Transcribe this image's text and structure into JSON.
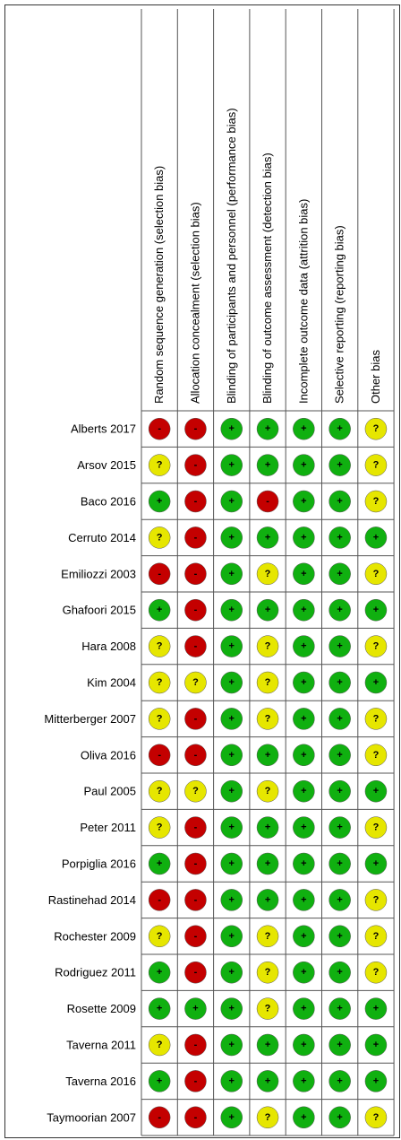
{
  "columns": [
    "Random sequence generation (selection bias)",
    "Allocation concealment (selection bias)",
    "Blinding of participants and personnel (performance bias)",
    "Blinding of outcome assessment (detection bias)",
    "Incomplete outcome data (attrition bias)",
    "Selective reporting (reporting bias)",
    "Other bias"
  ],
  "rows": [
    {
      "study": "Alberts 2017",
      "judgments": [
        "-",
        "-",
        "+",
        "+",
        "+",
        "+",
        "?"
      ]
    },
    {
      "study": "Arsov  2015",
      "judgments": [
        "?",
        "-",
        "+",
        "+",
        "+",
        "+",
        "?"
      ]
    },
    {
      "study": "Baco 2016",
      "judgments": [
        "+",
        "-",
        "+",
        "-",
        "+",
        "+",
        "?"
      ]
    },
    {
      "study": "Cerruto 2014",
      "judgments": [
        "?",
        "-",
        "+",
        "+",
        "+",
        "+",
        "+"
      ]
    },
    {
      "study": "Emiliozzi 2003",
      "judgments": [
        "-",
        "-",
        "+",
        "?",
        "+",
        "+",
        "?"
      ]
    },
    {
      "study": "Ghafoori 2015",
      "judgments": [
        "+",
        "-",
        "+",
        "+",
        "+",
        "+",
        "+"
      ]
    },
    {
      "study": "Hara 2008",
      "judgments": [
        "?",
        "-",
        "+",
        "?",
        "+",
        "+",
        "?"
      ]
    },
    {
      "study": "Kim 2004",
      "judgments": [
        "?",
        "?",
        "+",
        "?",
        "+",
        "+",
        "+"
      ]
    },
    {
      "study": "Mitterberger 2007",
      "judgments": [
        "?",
        "-",
        "+",
        "?",
        "+",
        "+",
        "?"
      ]
    },
    {
      "study": "Oliva 2016",
      "judgments": [
        "-",
        "-",
        "+",
        "+",
        "+",
        "+",
        "?"
      ]
    },
    {
      "study": "Paul 2005",
      "judgments": [
        "?",
        "?",
        "+",
        "?",
        "+",
        "+",
        "+"
      ]
    },
    {
      "study": "Peter 2011",
      "judgments": [
        "?",
        "-",
        "+",
        "+",
        "+",
        "+",
        "?"
      ]
    },
    {
      "study": "Porpiglia 2016",
      "judgments": [
        "+",
        "-",
        "+",
        "+",
        "+",
        "+",
        "+"
      ]
    },
    {
      "study": "Rastinehad 2014",
      "judgments": [
        "-",
        "-",
        "+",
        "+",
        "+",
        "+",
        "?"
      ]
    },
    {
      "study": "Rochester 2009",
      "judgments": [
        "?",
        "-",
        "+",
        "?",
        "+",
        "+",
        "?"
      ]
    },
    {
      "study": "Rodriguez 2011",
      "judgments": [
        "+",
        "-",
        "+",
        "?",
        "+",
        "+",
        "?"
      ]
    },
    {
      "study": "Rosette 2009",
      "judgments": [
        "+",
        "+",
        "+",
        "?",
        "+",
        "+",
        "+"
      ]
    },
    {
      "study": "Taverna 2011",
      "judgments": [
        "?",
        "-",
        "+",
        "+",
        "+",
        "+",
        "+"
      ]
    },
    {
      "study": "Taverna 2016",
      "judgments": [
        "+",
        "-",
        "+",
        "+",
        "+",
        "+",
        "+"
      ]
    },
    {
      "study": "Taymoorian 2007",
      "judgments": [
        "-",
        "-",
        "+",
        "?",
        "+",
        "+",
        "?"
      ]
    }
  ]
}
